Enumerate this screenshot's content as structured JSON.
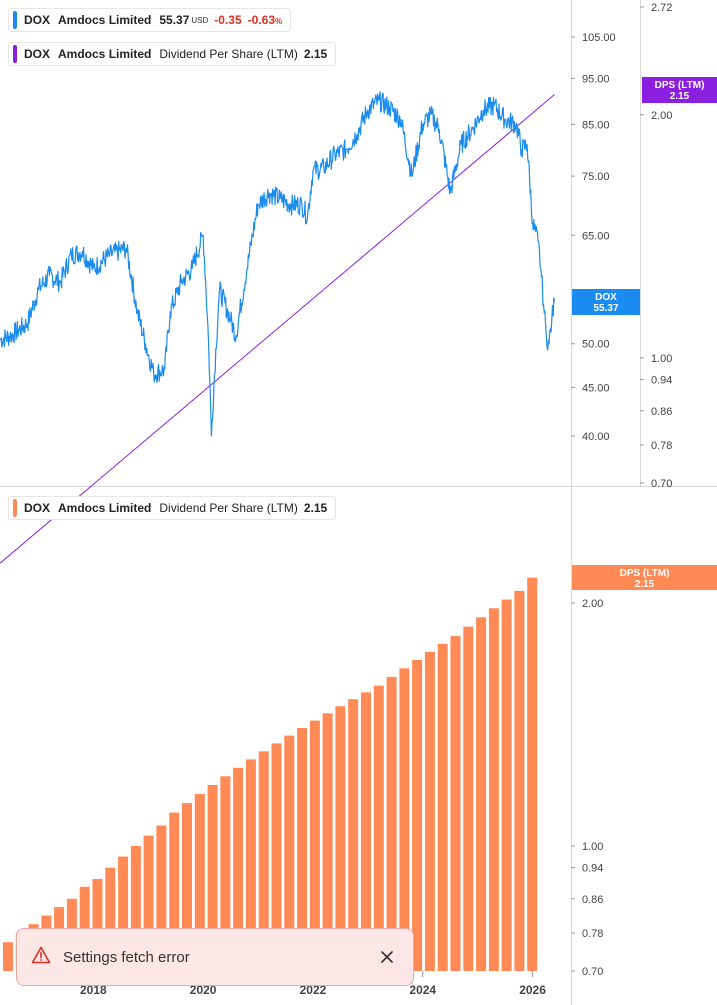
{
  "legend_price": {
    "symbol": "DOX",
    "name": "Amdocs Limited",
    "price": "55.37",
    "currency": "USD",
    "change": "-0.35",
    "change_pct": "-0.63",
    "pct_sign": "%",
    "color": "#1a8cf0"
  },
  "legend_dps_top": {
    "symbol": "DOX",
    "name": "Amdocs Limited",
    "metric": "Dividend Per Share (LTM)",
    "value": "2.15",
    "color": "#8a1fe0"
  },
  "legend_dps_bottom": {
    "symbol": "DOX",
    "name": "Amdocs Limited",
    "metric": "Dividend Per Share (LTM)",
    "value": "2.15",
    "color": "#ff8a55"
  },
  "toast": {
    "message": "Settings fetch error",
    "icon": "warning-triangle-icon",
    "close_icon": "close-icon"
  },
  "chart_data": [
    {
      "type": "line",
      "title": "",
      "x_range": [
        2016.3,
        2026.7
      ],
      "price_axis": {
        "scale": "log",
        "ticks": [
          "105.00",
          "95.00",
          "85.00",
          "75.00",
          "65.00",
          "50.00",
          "45.00",
          "40.00"
        ]
      },
      "dps_axis": {
        "scale": "log",
        "ticks": [
          "2.72",
          "2.00",
          "1.00",
          "0.94",
          "0.86",
          "0.78",
          "0.70"
        ]
      },
      "series": [
        {
          "name": "DOX",
          "color": "#1a8cf0",
          "points": [
            [
              2016.3,
              50.5
            ],
            [
              2016.5,
              51
            ],
            [
              2016.8,
              52.5
            ],
            [
              2017.0,
              57
            ],
            [
              2017.2,
              59
            ],
            [
              2017.4,
              58
            ],
            [
              2017.6,
              62
            ],
            [
              2017.8,
              62.5
            ],
            [
              2018.0,
              60
            ],
            [
              2018.3,
              62
            ],
            [
              2018.6,
              63
            ],
            [
              2018.8,
              54
            ],
            [
              2018.95,
              50
            ],
            [
              2019.1,
              46.5
            ],
            [
              2019.3,
              47
            ],
            [
              2019.4,
              54
            ],
            [
              2019.6,
              58
            ],
            [
              2019.8,
              60
            ],
            [
              2020.0,
              65
            ],
            [
              2020.1,
              50
            ],
            [
              2020.15,
              40
            ],
            [
              2020.3,
              57
            ],
            [
              2020.5,
              53
            ],
            [
              2020.6,
              51
            ],
            [
              2020.8,
              60
            ],
            [
              2021.0,
              70
            ],
            [
              2021.2,
              72
            ],
            [
              2021.4,
              71
            ],
            [
              2021.6,
              70
            ],
            [
              2021.8,
              70
            ],
            [
              2021.9,
              68
            ],
            [
              2022.0,
              76
            ],
            [
              2022.2,
              76.5
            ],
            [
              2022.4,
              79
            ],
            [
              2022.6,
              80
            ],
            [
              2022.8,
              83
            ],
            [
              2023.0,
              88
            ],
            [
              2023.2,
              90
            ],
            [
              2023.4,
              88.5
            ],
            [
              2023.6,
              86
            ],
            [
              2023.8,
              75
            ],
            [
              2024.0,
              85
            ],
            [
              2024.15,
              87
            ],
            [
              2024.3,
              84
            ],
            [
              2024.5,
              72
            ],
            [
              2024.7,
              81
            ],
            [
              2024.9,
              84
            ],
            [
              2025.1,
              88
            ],
            [
              2025.3,
              89
            ],
            [
              2025.5,
              86
            ],
            [
              2025.7,
              85
            ],
            [
              2025.8,
              80
            ],
            [
              2025.9,
              81
            ],
            [
              2026.0,
              67
            ],
            [
              2026.1,
              64
            ],
            [
              2026.15,
              60
            ],
            [
              2026.2,
              55
            ],
            [
              2026.25,
              51
            ],
            [
              2026.3,
              50
            ],
            [
              2026.35,
              53
            ],
            [
              2026.4,
              55.37
            ]
          ],
          "last_label": "DOX",
          "last_value": "55.37"
        },
        {
          "name": "DPS (LTM)",
          "color": "#8a1fe0",
          "points": [
            [
              2016.3,
              0.692
            ],
            [
              2026.4,
              2.15
            ]
          ],
          "last_label": "DPS (LTM)",
          "last_value": "2.15"
        }
      ]
    },
    {
      "type": "bar",
      "title": "",
      "x_range": [
        2016.3,
        2026.7
      ],
      "axis": {
        "scale": "log",
        "ticks": [
          "2.00",
          "1.00",
          "0.94",
          "0.86",
          "0.78",
          "0.70"
        ]
      },
      "x_ticks": [
        "2018",
        "2020",
        "2022",
        "2024",
        "2026"
      ],
      "series": [
        {
          "name": "DPS (LTM)",
          "color": "#ff8a55",
          "values": [
            0.76,
            0.78,
            0.8,
            0.82,
            0.84,
            0.86,
            0.89,
            0.91,
            0.94,
            0.97,
            1.0,
            1.03,
            1.06,
            1.1,
            1.13,
            1.16,
            1.19,
            1.22,
            1.25,
            1.28,
            1.31,
            1.34,
            1.37,
            1.4,
            1.43,
            1.46,
            1.49,
            1.52,
            1.55,
            1.58,
            1.62,
            1.66,
            1.7,
            1.74,
            1.78,
            1.82,
            1.87,
            1.92,
            1.97,
            2.02,
            2.07,
            2.15
          ],
          "last_label": "DPS (LTM)",
          "last_value": "2.15"
        }
      ]
    }
  ]
}
